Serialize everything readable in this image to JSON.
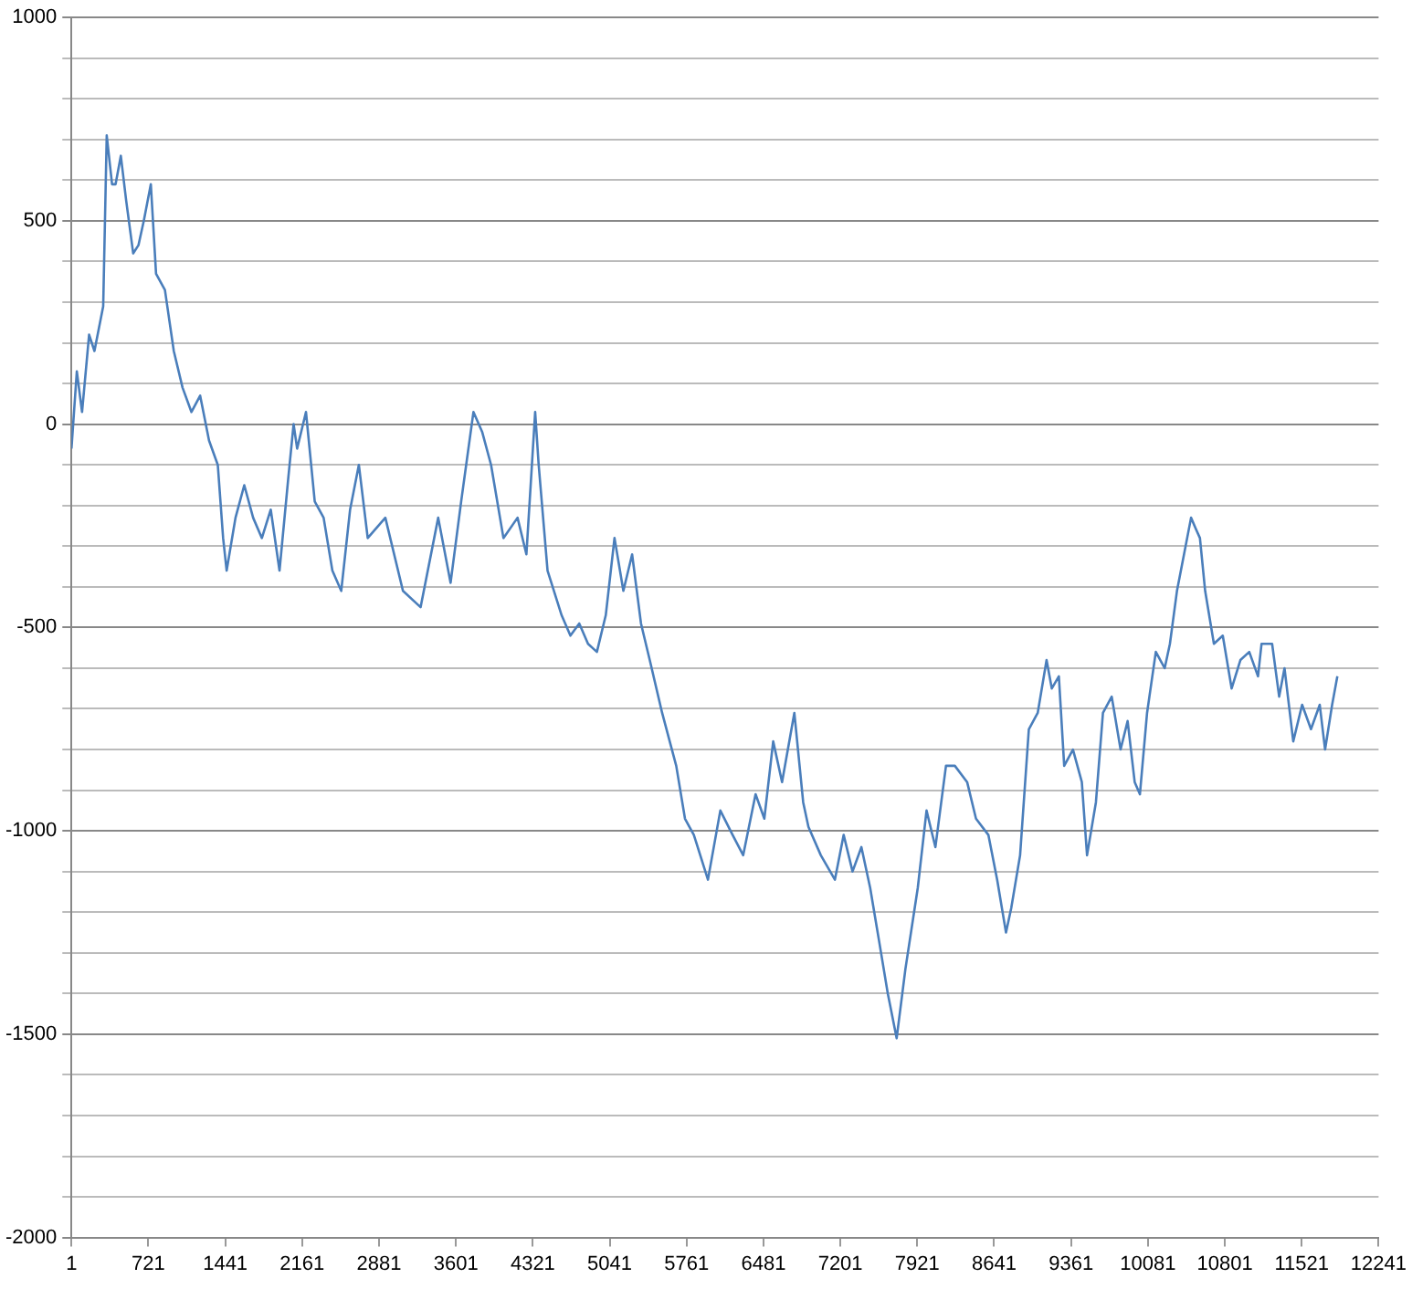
{
  "chart_data": {
    "type": "line",
    "x": [
      1,
      51,
      100,
      166,
      216,
      298,
      331,
      381,
      414,
      463,
      513,
      579,
      628,
      678,
      744,
      793,
      876,
      959,
      1041,
      1124,
      1206,
      1289,
      1371,
      1421,
      1454,
      1537,
      1619,
      1702,
      1784,
      1867,
      1949,
      2032,
      2081,
      2114,
      2197,
      2279,
      2362,
      2444,
      2527,
      2610,
      2692,
      2775,
      2940,
      3105,
      3270,
      3435,
      3551,
      3650,
      3765,
      3848,
      3930,
      4046,
      4178,
      4261,
      4343,
      4376,
      4459,
      4591,
      4673,
      4756,
      4838,
      4921,
      5004,
      5086,
      5169,
      5251,
      5334,
      5416,
      5532,
      5664,
      5746,
      5829,
      5961,
      6077,
      6192,
      6291,
      6407,
      6489,
      6572,
      6655,
      6770,
      6853,
      6902,
      7018,
      7150,
      7232,
      7315,
      7398,
      7480,
      7563,
      7645,
      7728,
      7810,
      7926,
      8008,
      8091,
      8190,
      8273,
      8388,
      8471,
      8587,
      8669,
      8752,
      8801,
      8884,
      8966,
      9049,
      9132,
      9181,
      9247,
      9297,
      9379,
      9462,
      9511,
      9594,
      9660,
      9742,
      9825,
      9891,
      9957,
      10006,
      10073,
      10155,
      10238,
      10287,
      10353,
      10419,
      10485,
      10534,
      10568,
      10617,
      10699,
      10782,
      10865,
      10947,
      11030,
      11112,
      11145,
      11244,
      11310,
      11360,
      11442,
      11525,
      11608,
      11690,
      11740,
      11806,
      11855
    ],
    "series": [
      {
        "color": "#4a7ebb",
        "values": [
          -60,
          130,
          30,
          220,
          180,
          290,
          710,
          590,
          590,
          660,
          550,
          420,
          440,
          500,
          590,
          370,
          330,
          180,
          90,
          30,
          70,
          -40,
          -100,
          -280,
          -360,
          -230,
          -150,
          -230,
          -280,
          -210,
          -360,
          -130,
          0,
          -60,
          30,
          -190,
          -230,
          -360,
          -410,
          -210,
          -100,
          -280,
          -230,
          -410,
          -450,
          -230,
          -390,
          -190,
          30,
          -20,
          -100,
          -280,
          -230,
          -320,
          30,
          -100,
          -360,
          -470,
          -520,
          -490,
          -540,
          -560,
          -470,
          -280,
          -410,
          -320,
          -490,
          -580,
          -710,
          -840,
          -970,
          -1010,
          -1120,
          -950,
          -1010,
          -1060,
          -910,
          -970,
          -780,
          -880,
          -710,
          -930,
          -990,
          -1060,
          -1120,
          -1010,
          -1100,
          -1040,
          -1140,
          -1270,
          -1400,
          -1510,
          -1340,
          -1140,
          -950,
          -1040,
          -840,
          -840,
          -880,
          -970,
          -1010,
          -1120,
          -1250,
          -1190,
          -1060,
          -750,
          -710,
          -580,
          -650,
          -620,
          -840,
          -800,
          -880,
          -1060,
          -930,
          -710,
          -670,
          -800,
          -730,
          -880,
          -910,
          -710,
          -560,
          -600,
          -540,
          -410,
          -320,
          -230,
          -260,
          -280,
          -410,
          -540,
          -520,
          -650,
          -580,
          -560,
          -620,
          -540,
          -540,
          -670,
          -600,
          -780,
          -690,
          -750,
          -690,
          -800,
          -690,
          -620
        ]
      }
    ],
    "xlim": [
      1,
      12241
    ],
    "xticks": [
      1,
      721,
      1441,
      2161,
      2881,
      3601,
      4321,
      5041,
      5761,
      6481,
      7201,
      7921,
      8641,
      9361,
      10081,
      10801,
      11521,
      12241
    ],
    "ylim": [
      -2000,
      1000
    ],
    "yticks": [
      -2000,
      {
        "value": -1900,
        "label": null
      },
      {
        "value": -1800,
        "label": null
      },
      {
        "value": -1700,
        "label": null
      },
      {
        "value": -1600,
        "label": null
      },
      -1500,
      {
        "value": -1400,
        "label": null
      },
      {
        "value": -1300,
        "label": null
      },
      {
        "value": -1200,
        "label": null
      },
      {
        "value": -1100,
        "label": null
      },
      -1000,
      {
        "value": -900,
        "label": null
      },
      {
        "value": -800,
        "label": null
      },
      {
        "value": -700,
        "label": null
      },
      {
        "value": -600,
        "label": null
      },
      -500,
      {
        "value": -400,
        "label": null
      },
      {
        "value": -300,
        "label": null
      },
      {
        "value": -200,
        "label": null
      },
      {
        "value": -100,
        "label": null
      },
      0,
      {
        "value": 100,
        "label": null
      },
      {
        "value": 200,
        "label": null
      },
      {
        "value": 300,
        "label": null
      },
      {
        "value": 400,
        "label": null
      },
      500,
      {
        "value": 600,
        "label": null
      },
      {
        "value": 700,
        "label": null
      },
      {
        "value": 800,
        "label": null
      },
      {
        "value": 900,
        "label": null
      },
      1000
    ],
    "grid": "y",
    "marker": "none",
    "line_style": "solid"
  }
}
